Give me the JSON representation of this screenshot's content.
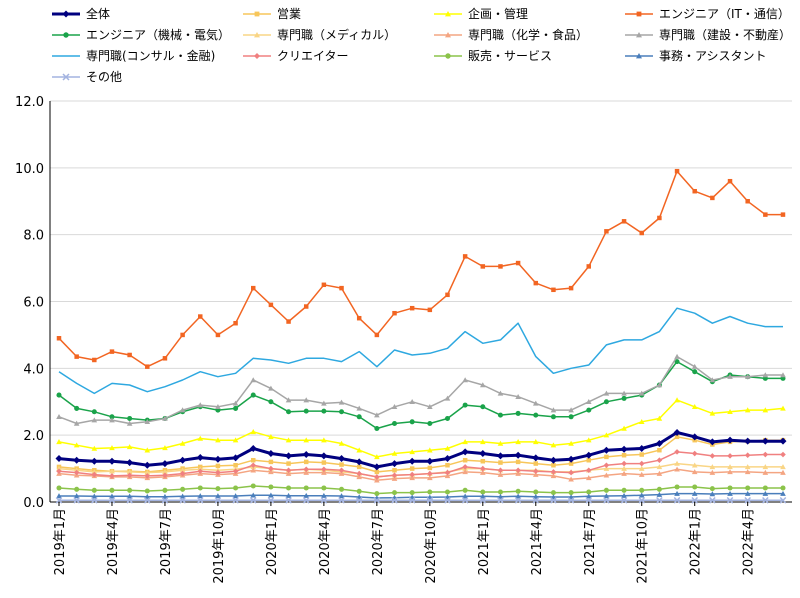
{
  "chart_data": {
    "type": "line",
    "xlabel": "",
    "ylabel": "",
    "ylim": [
      0,
      12
    ],
    "yticks": [
      "0.0",
      "2.0",
      "4.0",
      "6.0",
      "8.0",
      "10.0",
      "12.0"
    ],
    "x_tick_labels": [
      "2019年1月",
      "2019年4月",
      "2019年7月",
      "2019年10月",
      "2020年1月",
      "2020年4月",
      "2020年7月",
      "2020年10月",
      "2021年1月",
      "2021年4月",
      "2021年7月",
      "2021年10月",
      "2022年1月",
      "2022年4月"
    ],
    "x_tick_month_index": [
      0,
      3,
      6,
      9,
      12,
      15,
      18,
      21,
      24,
      27,
      30,
      33,
      36,
      39
    ],
    "months": [
      "2019-01",
      "2019-02",
      "2019-03",
      "2019-04",
      "2019-05",
      "2019-06",
      "2019-07",
      "2019-08",
      "2019-09",
      "2019-10",
      "2019-11",
      "2019-12",
      "2020-01",
      "2020-02",
      "2020-03",
      "2020-04",
      "2020-05",
      "2020-06",
      "2020-07",
      "2020-08",
      "2020-09",
      "2020-10",
      "2020-11",
      "2020-12",
      "2021-01",
      "2021-02",
      "2021-03",
      "2021-04",
      "2021-05",
      "2021-06",
      "2021-07",
      "2021-08",
      "2021-09",
      "2021-10",
      "2021-11",
      "2021-12",
      "2022-01",
      "2022-02",
      "2022-03",
      "2022-04",
      "2022-05",
      "2022-06"
    ],
    "grid": true,
    "legend_position": "top",
    "series": [
      {
        "name": "全体",
        "color": "#00007f",
        "marker": "diamond",
        "width": 3,
        "values": [
          1.3,
          1.25,
          1.22,
          1.22,
          1.18,
          1.1,
          1.15,
          1.25,
          1.33,
          1.28,
          1.32,
          1.6,
          1.45,
          1.38,
          1.42,
          1.38,
          1.3,
          1.2,
          1.05,
          1.15,
          1.22,
          1.22,
          1.3,
          1.5,
          1.45,
          1.38,
          1.4,
          1.32,
          1.25,
          1.28,
          1.4,
          1.55,
          1.58,
          1.6,
          1.75,
          2.08,
          1.95,
          1.8,
          1.85,
          1.82,
          1.82,
          1.82
        ]
      },
      {
        "name": "営業",
        "color": "#f7c65a",
        "marker": "square",
        "width": 1.5,
        "values": [
          1.05,
          1.0,
          0.95,
          0.92,
          0.92,
          0.9,
          0.95,
          1.0,
          1.05,
          1.08,
          1.1,
          1.25,
          1.2,
          1.15,
          1.2,
          1.18,
          1.12,
          1.05,
          0.9,
          0.95,
          1.0,
          1.02,
          1.1,
          1.25,
          1.22,
          1.18,
          1.2,
          1.15,
          1.1,
          1.15,
          1.25,
          1.35,
          1.4,
          1.42,
          1.55,
          1.95,
          1.85,
          1.72,
          1.8,
          1.82,
          1.85,
          1.85
        ]
      },
      {
        "name": "企画・管理",
        "color": "#ffff00",
        "marker": "triangle",
        "width": 1.5,
        "values": [
          1.8,
          1.7,
          1.6,
          1.62,
          1.65,
          1.55,
          1.62,
          1.75,
          1.9,
          1.85,
          1.85,
          2.1,
          1.95,
          1.85,
          1.85,
          1.85,
          1.75,
          1.55,
          1.35,
          1.45,
          1.5,
          1.55,
          1.6,
          1.8,
          1.8,
          1.75,
          1.8,
          1.8,
          1.7,
          1.75,
          1.85,
          2.0,
          2.2,
          2.4,
          2.5,
          3.05,
          2.85,
          2.65,
          2.7,
          2.75,
          2.75,
          2.8
        ]
      },
      {
        "name": "エンジニア（IT・通信）",
        "color": "#f26522",
        "marker": "square",
        "width": 1.5,
        "values": [
          4.9,
          4.35,
          4.25,
          4.5,
          4.4,
          4.05,
          4.3,
          5.0,
          5.55,
          5.0,
          5.35,
          6.4,
          5.9,
          5.4,
          5.85,
          6.5,
          6.4,
          5.5,
          5.0,
          5.65,
          5.8,
          5.75,
          6.2,
          7.35,
          7.05,
          7.05,
          7.15,
          6.55,
          6.35,
          6.4,
          7.05,
          8.1,
          8.4,
          8.05,
          8.5,
          9.9,
          9.3,
          9.1,
          9.6,
          9.0,
          8.6,
          8.6
        ]
      },
      {
        "name": "エンジニア（機械・電気）",
        "color": "#1aa34a",
        "marker": "circle",
        "width": 1.5,
        "values": [
          3.2,
          2.8,
          2.7,
          2.55,
          2.5,
          2.45,
          2.5,
          2.7,
          2.85,
          2.75,
          2.8,
          3.2,
          3.0,
          2.7,
          2.72,
          2.72,
          2.7,
          2.55,
          2.2,
          2.35,
          2.4,
          2.35,
          2.5,
          2.9,
          2.85,
          2.6,
          2.65,
          2.6,
          2.55,
          2.55,
          2.75,
          3.0,
          3.1,
          3.2,
          3.5,
          4.2,
          3.9,
          3.6,
          3.8,
          3.75,
          3.7,
          3.7
        ]
      },
      {
        "name": "専門職（メディカル）",
        "color": "#f9d585",
        "marker": "triangle",
        "width": 1.5,
        "values": [
          1.0,
          0.95,
          0.9,
          0.92,
          0.9,
          0.88,
          0.9,
          0.95,
          0.98,
          0.95,
          0.98,
          1.05,
          1.0,
          0.95,
          0.98,
          0.95,
          0.9,
          0.85,
          0.75,
          0.8,
          0.82,
          0.85,
          0.9,
          1.0,
          1.0,
          0.95,
          0.95,
          0.95,
          0.9,
          0.9,
          0.95,
          1.0,
          1.0,
          1.0,
          1.05,
          1.15,
          1.1,
          1.05,
          1.05,
          1.05,
          1.05,
          1.05
        ]
      },
      {
        "name": "専門職（化学・食品）",
        "color": "#f4a582",
        "marker": "triangle",
        "width": 1.5,
        "values": [
          0.85,
          0.8,
          0.78,
          0.75,
          0.75,
          0.72,
          0.75,
          0.8,
          0.85,
          0.82,
          0.85,
          0.95,
          0.9,
          0.85,
          0.88,
          0.88,
          0.85,
          0.75,
          0.65,
          0.7,
          0.72,
          0.72,
          0.78,
          0.9,
          0.88,
          0.82,
          0.85,
          0.82,
          0.78,
          0.68,
          0.72,
          0.8,
          0.85,
          0.82,
          0.85,
          0.98,
          0.9,
          0.88,
          0.9,
          0.9,
          0.88,
          0.88
        ]
      },
      {
        "name": "専門職（建設・不動産）",
        "color": "#a6a6a6",
        "marker": "triangle",
        "width": 1.5,
        "values": [
          2.55,
          2.35,
          2.45,
          2.45,
          2.35,
          2.4,
          2.5,
          2.75,
          2.9,
          2.85,
          2.95,
          3.65,
          3.4,
          3.05,
          3.05,
          2.95,
          2.98,
          2.8,
          2.6,
          2.85,
          3.0,
          2.85,
          3.1,
          3.65,
          3.5,
          3.25,
          3.15,
          2.95,
          2.75,
          2.75,
          3.0,
          3.25,
          3.25,
          3.25,
          3.5,
          4.35,
          4.05,
          3.65,
          3.75,
          3.75,
          3.8,
          3.8
        ]
      },
      {
        "name": "専門職(コンサル・金融)",
        "color": "#2ea8e0",
        "marker": "none",
        "width": 1.5,
        "values": [
          3.9,
          3.55,
          3.25,
          3.55,
          3.5,
          3.3,
          3.45,
          3.65,
          3.9,
          3.75,
          3.85,
          4.3,
          4.25,
          4.15,
          4.3,
          4.3,
          4.2,
          4.5,
          4.05,
          4.55,
          4.4,
          4.45,
          4.6,
          5.1,
          4.75,
          4.85,
          5.35,
          4.35,
          3.85,
          4.0,
          4.1,
          4.7,
          4.85,
          4.85,
          5.1,
          5.8,
          5.65,
          5.35,
          5.55,
          5.35,
          5.25,
          5.25
        ]
      },
      {
        "name": "クリエイター",
        "color": "#f08080",
        "marker": "diamond",
        "width": 1.5,
        "values": [
          0.92,
          0.88,
          0.82,
          0.78,
          0.8,
          0.78,
          0.8,
          0.85,
          0.92,
          0.88,
          0.92,
          1.1,
          1.0,
          0.95,
          0.98,
          0.98,
          0.95,
          0.85,
          0.75,
          0.8,
          0.82,
          0.85,
          0.88,
          1.05,
          1.0,
          0.95,
          0.95,
          0.92,
          0.9,
          0.88,
          0.95,
          1.1,
          1.15,
          1.15,
          1.25,
          1.5,
          1.45,
          1.38,
          1.38,
          1.4,
          1.42,
          1.42
        ]
      },
      {
        "name": "販売・サービス",
        "color": "#8bc34a",
        "marker": "circle",
        "width": 1.5,
        "values": [
          0.42,
          0.38,
          0.35,
          0.35,
          0.35,
          0.33,
          0.35,
          0.38,
          0.42,
          0.4,
          0.42,
          0.48,
          0.45,
          0.42,
          0.42,
          0.42,
          0.38,
          0.32,
          0.25,
          0.28,
          0.28,
          0.3,
          0.3,
          0.35,
          0.3,
          0.3,
          0.32,
          0.3,
          0.28,
          0.28,
          0.3,
          0.35,
          0.35,
          0.35,
          0.38,
          0.45,
          0.45,
          0.4,
          0.42,
          0.42,
          0.42,
          0.42
        ]
      },
      {
        "name": "事務・アシスタント",
        "color": "#4a7ebb",
        "marker": "triangle",
        "width": 1.5,
        "values": [
          0.18,
          0.18,
          0.17,
          0.17,
          0.17,
          0.16,
          0.16,
          0.17,
          0.18,
          0.18,
          0.18,
          0.2,
          0.2,
          0.19,
          0.19,
          0.19,
          0.18,
          0.15,
          0.12,
          0.13,
          0.14,
          0.14,
          0.15,
          0.17,
          0.17,
          0.16,
          0.17,
          0.16,
          0.15,
          0.15,
          0.17,
          0.18,
          0.19,
          0.2,
          0.22,
          0.25,
          0.25,
          0.24,
          0.25,
          0.25,
          0.25,
          0.25
        ]
      },
      {
        "name": "その他",
        "color": "#a3b3e0",
        "marker": "x",
        "width": 1.5,
        "values": [
          0.05,
          0.05,
          0.05,
          0.05,
          0.05,
          0.05,
          0.05,
          0.05,
          0.05,
          0.05,
          0.05,
          0.05,
          0.05,
          0.05,
          0.05,
          0.05,
          0.05,
          0.05,
          0.05,
          0.05,
          0.05,
          0.05,
          0.05,
          0.05,
          0.05,
          0.05,
          0.05,
          0.05,
          0.05,
          0.05,
          0.05,
          0.05,
          0.05,
          0.05,
          0.05,
          0.05,
          0.05,
          0.05,
          0.05,
          0.05,
          0.05,
          0.05
        ]
      }
    ]
  }
}
